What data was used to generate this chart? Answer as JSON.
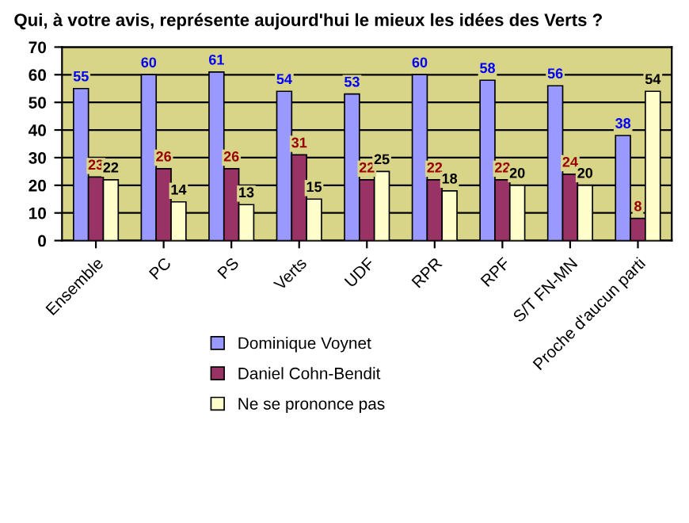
{
  "chart_data": {
    "type": "bar",
    "title": "Qui, à votre avis, représente aujourd'hui le mieux les idées des Verts ?",
    "categories": [
      "Ensemble",
      "PC",
      "PS",
      "Verts",
      "UDF",
      "RPR",
      "RPF",
      "S/T FN-MN",
      "Proche d'aucun parti"
    ],
    "series": [
      {
        "name": "Dominique Voynet",
        "color": "#9999ff",
        "values": [
          55,
          60,
          61,
          54,
          53,
          60,
          58,
          56,
          38
        ]
      },
      {
        "name": "Daniel Cohn-Bendit",
        "color": "#993366",
        "values": [
          23,
          26,
          26,
          31,
          22,
          22,
          22,
          24,
          8
        ]
      },
      {
        "name": "Ne se prononce pas",
        "color": "#ffffcc",
        "values": [
          22,
          14,
          13,
          15,
          25,
          18,
          20,
          20,
          54
        ]
      }
    ],
    "ylim": [
      0,
      70
    ],
    "yticks": [
      0,
      10,
      20,
      30,
      40,
      50,
      60,
      70
    ],
    "grid": "y",
    "legend": "bottom",
    "data_labels": true
  }
}
